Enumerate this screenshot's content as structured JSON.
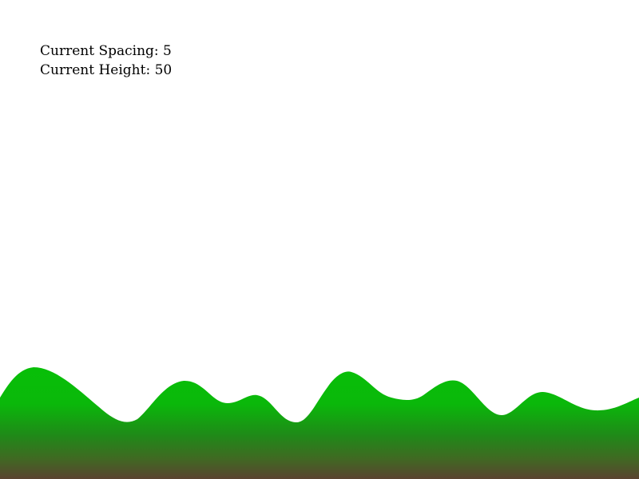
{
  "info": {
    "spacing_label": "Current Spacing:",
    "spacing_value": "5",
    "height_label": "Current Height:",
    "height_value": "50"
  },
  "terrain": {
    "colors": {
      "grass": "#08c008",
      "mid": "#1f8a18",
      "dirt": "#5a4330",
      "background": "#ffffff"
    }
  }
}
